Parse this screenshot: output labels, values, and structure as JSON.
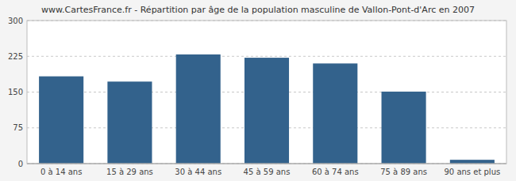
{
  "chart_data": {
    "type": "bar",
    "title": "www.CartesFrance.fr - Répartition par âge de la population masculine de Vallon-Pont-d'Arc en 2007",
    "categories": [
      "0 à 14 ans",
      "15 à 29 ans",
      "30 à 44 ans",
      "45 à 59 ans",
      "60 à 74 ans",
      "75 à 89 ans",
      "90 ans et plus"
    ],
    "values": [
      183,
      172,
      229,
      222,
      210,
      151,
      8
    ],
    "color": "#33628c",
    "ylim": [
      0,
      300
    ],
    "yticks": [
      0,
      75,
      150,
      225,
      300
    ],
    "grid": true
  }
}
